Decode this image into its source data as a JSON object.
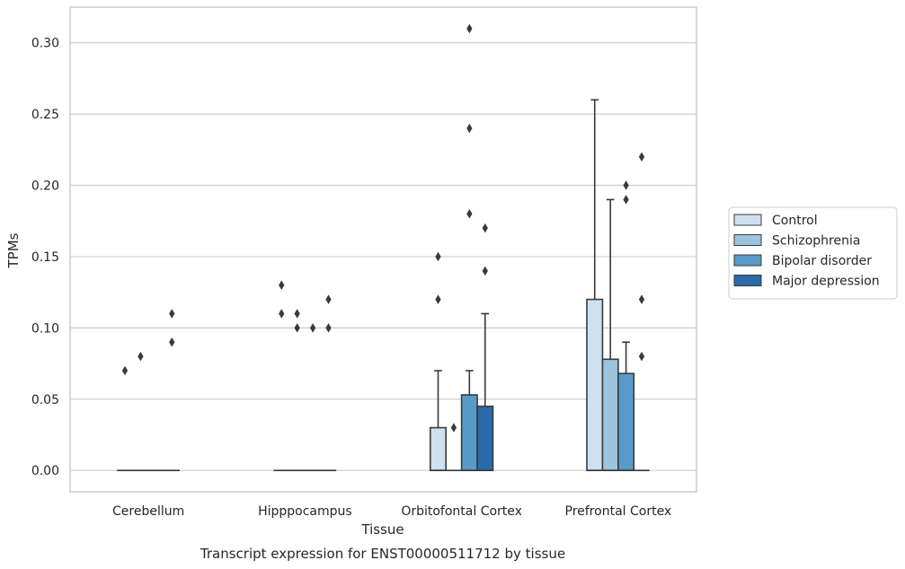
{
  "caption": "Transcript expression for ENST00000511712 by tissue",
  "chart_data": {
    "type": "box",
    "xlabel": "Tissue",
    "ylabel": "TPMs",
    "ylim": [
      -0.015,
      0.325
    ],
    "yticks": [
      0.0,
      0.05,
      0.1,
      0.15,
      0.2,
      0.25,
      0.3
    ],
    "ytick_labels": [
      "0.00",
      "0.05",
      "0.10",
      "0.15",
      "0.20",
      "0.25",
      "0.30"
    ],
    "grid": "horizontal",
    "legend_position": "right",
    "categories": [
      "Cerebellum",
      "Hipppocampus",
      "Orbitofontal Cortex",
      "Prefrontal Cortex"
    ],
    "series": [
      {
        "name": "Control",
        "color": "#cfe1f0",
        "boxes": [
          {
            "q1": 0,
            "median": 0,
            "q3": 0,
            "whisker_low": 0,
            "whisker_high": 0,
            "outliers": [
              0.07
            ]
          },
          {
            "q1": 0,
            "median": 0,
            "q3": 0,
            "whisker_low": 0,
            "whisker_high": 0,
            "outliers": [
              0.13,
              0.11
            ]
          },
          {
            "q1": 0,
            "median": 0,
            "q3": 0.03,
            "whisker_low": 0,
            "whisker_high": 0.07,
            "outliers": [
              0.15,
              0.12
            ]
          },
          {
            "q1": 0,
            "median": 0,
            "q3": 0.12,
            "whisker_low": 0,
            "whisker_high": 0.26,
            "outliers": []
          }
        ]
      },
      {
        "name": "Schizophrenia",
        "color": "#9dc4de",
        "boxes": [
          {
            "q1": 0,
            "median": 0,
            "q3": 0,
            "whisker_low": 0,
            "whisker_high": 0,
            "outliers": [
              0.08
            ]
          },
          {
            "q1": 0,
            "median": 0,
            "q3": 0,
            "whisker_low": 0,
            "whisker_high": 0,
            "outliers": [
              0.11,
              0.1
            ]
          },
          {
            "q1": 0,
            "median": 0,
            "q3": 0,
            "whisker_low": 0,
            "whisker_high": 0,
            "outliers": [
              0.03
            ]
          },
          {
            "q1": 0,
            "median": 0,
            "q3": 0.078,
            "whisker_low": 0,
            "whisker_high": 0.19,
            "outliers": []
          }
        ]
      },
      {
        "name": "Bipolar disorder",
        "color": "#5a9ac8",
        "boxes": [
          {
            "q1": 0,
            "median": 0,
            "q3": 0,
            "whisker_low": 0,
            "whisker_high": 0,
            "outliers": []
          },
          {
            "q1": 0,
            "median": 0,
            "q3": 0,
            "whisker_low": 0,
            "whisker_high": 0,
            "outliers": [
              0.1
            ]
          },
          {
            "q1": 0,
            "median": 0,
            "q3": 0.053,
            "whisker_low": 0,
            "whisker_high": 0.07,
            "outliers": [
              0.31,
              0.24,
              0.18
            ]
          },
          {
            "q1": 0,
            "median": 0,
            "q3": 0.068,
            "whisker_low": 0,
            "whisker_high": 0.09,
            "outliers": [
              0.2,
              0.19
            ]
          }
        ]
      },
      {
        "name": "Major depression",
        "color": "#2b6aa8",
        "boxes": [
          {
            "q1": 0,
            "median": 0,
            "q3": 0,
            "whisker_low": 0,
            "whisker_high": 0,
            "outliers": [
              0.11,
              0.09
            ]
          },
          {
            "q1": 0,
            "median": 0,
            "q3": 0,
            "whisker_low": 0,
            "whisker_high": 0,
            "outliers": [
              0.12,
              0.1
            ]
          },
          {
            "q1": 0,
            "median": 0,
            "q3": 0.045,
            "whisker_low": 0,
            "whisker_high": 0.11,
            "outliers": [
              0.17,
              0.14
            ]
          },
          {
            "q1": 0,
            "median": 0,
            "q3": 0,
            "whisker_low": 0,
            "whisker_high": 0,
            "outliers": [
              0.22,
              0.12,
              0.08
            ]
          }
        ]
      }
    ]
  }
}
